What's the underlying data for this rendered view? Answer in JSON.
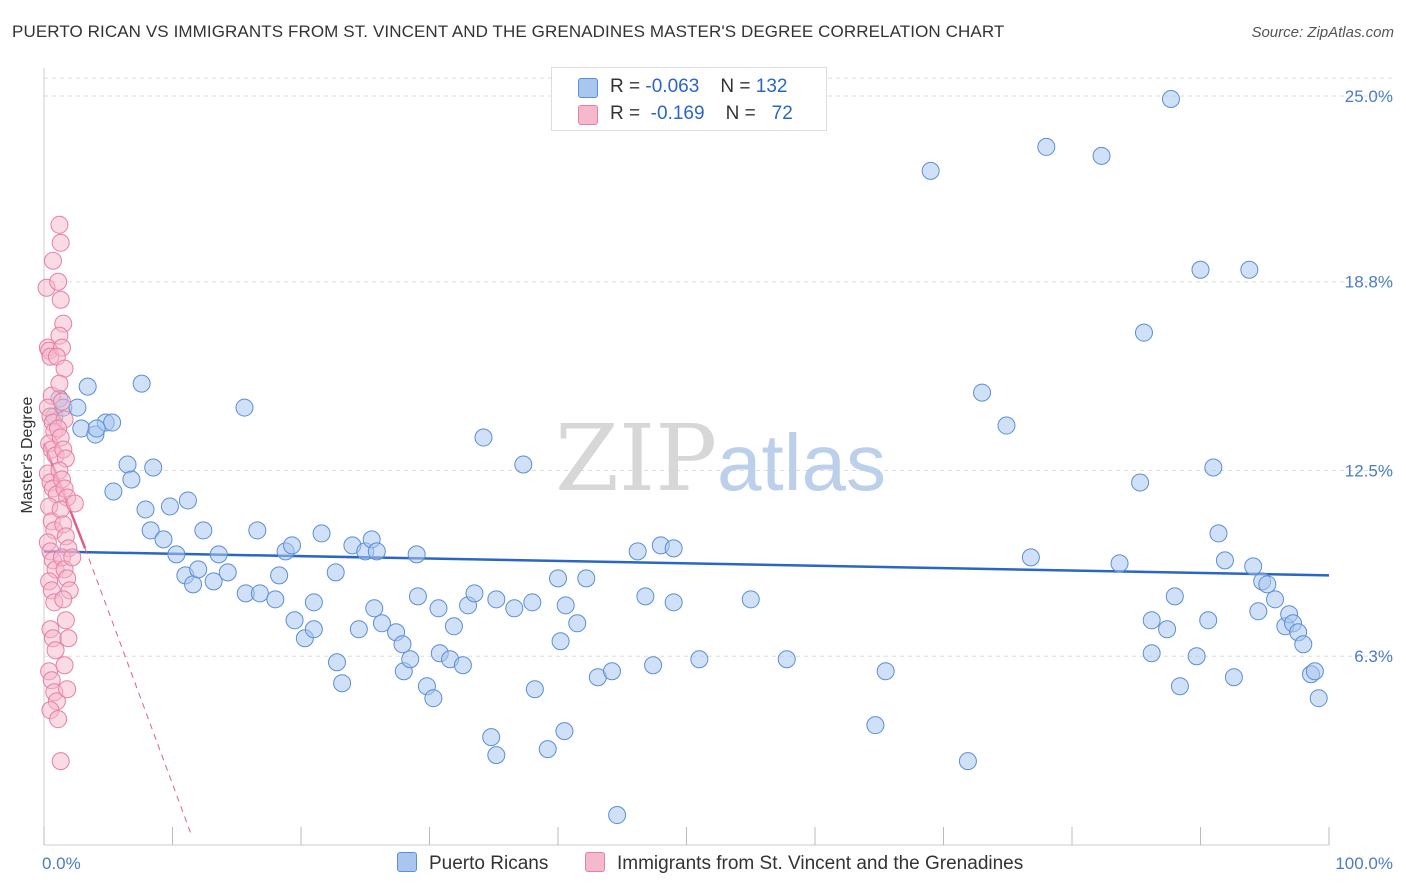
{
  "title": "PUERTO RICAN VS IMMIGRANTS FROM ST. VINCENT AND THE GRENADINES MASTER'S DEGREE CORRELATION CHART",
  "source": "Source: ZipAtlas.com",
  "watermark": {
    "part1": "ZIP",
    "part2": "atlas"
  },
  "legend_top": {
    "row1": {
      "r_label": "R =",
      "r_value": "-0.063",
      "n_label": "N =",
      "n_value": "132"
    },
    "row2": {
      "r_label": "R =",
      "r_value": "-0.169",
      "n_label": "N =",
      "n_value": "72"
    }
  },
  "legend_bottom": {
    "series1": "Puerto Ricans",
    "series2": "Immigrants from St. Vincent and the Grenadines"
  },
  "colors": {
    "blue_fill": "#a9c6ef",
    "blue_stroke": "#5b8fd6",
    "blue_line": "#2a66c8",
    "pink_fill": "#f6b8cc",
    "pink_stroke": "#e77fa1",
    "pink_line": "#e0608a",
    "grid": "#dddddd",
    "tick_text": "#4a7cc9"
  },
  "chart_data": {
    "type": "scatter",
    "title": "PUERTO RICAN VS IMMIGRANTS FROM ST. VINCENT AND THE GRENADINES MASTER'S DEGREE CORRELATION CHART",
    "xlabel": "",
    "ylabel": "Master's Degree",
    "xlim": [
      0,
      100
    ],
    "ylim": [
      0,
      25.6
    ],
    "x_tick_labels": [
      "0.0%",
      "100.0%"
    ],
    "y_ticks": [
      6.3,
      12.5,
      18.8,
      25.0
    ],
    "y_tick_labels": [
      "6.3%",
      "12.5%",
      "18.8%",
      "25.0%"
    ],
    "grid": true,
    "series": [
      {
        "name": "Puerto Ricans",
        "R": -0.063,
        "N": 132,
        "trend": {
          "x": [
            0,
            100
          ],
          "y": [
            9.8,
            9.0
          ]
        },
        "points": [
          [
            0.8,
            14.3
          ],
          [
            1.2,
            14.9
          ],
          [
            1.5,
            14.6
          ],
          [
            2.6,
            14.6
          ],
          [
            3.4,
            15.3
          ],
          [
            2.9,
            13.9
          ],
          [
            4.0,
            13.7
          ],
          [
            4.8,
            14.1
          ],
          [
            7.6,
            15.4
          ],
          [
            5.3,
            14.1
          ],
          [
            4.1,
            13.9
          ],
          [
            6.5,
            12.7
          ],
          [
            5.4,
            11.8
          ],
          [
            6.8,
            12.2
          ],
          [
            8.5,
            12.6
          ],
          [
            7.9,
            11.2
          ],
          [
            9.8,
            11.3
          ],
          [
            11.2,
            11.5
          ],
          [
            8.3,
            10.5
          ],
          [
            9.3,
            10.2
          ],
          [
            10.3,
            9.7
          ],
          [
            11.0,
            9.0
          ],
          [
            11.6,
            8.7
          ],
          [
            12.0,
            9.2
          ],
          [
            12.4,
            10.5
          ],
          [
            13.6,
            9.7
          ],
          [
            13.2,
            8.8
          ],
          [
            14.3,
            9.1
          ],
          [
            15.7,
            8.4
          ],
          [
            16.8,
            8.4
          ],
          [
            15.6,
            14.6
          ],
          [
            16.6,
            10.5
          ],
          [
            18.0,
            8.2
          ],
          [
            18.3,
            9.0
          ],
          [
            18.8,
            9.8
          ],
          [
            19.3,
            10.0
          ],
          [
            19.5,
            7.5
          ],
          [
            20.3,
            6.9
          ],
          [
            21.0,
            8.1
          ],
          [
            21.6,
            10.4
          ],
          [
            21.0,
            7.2
          ],
          [
            22.7,
            9.1
          ],
          [
            22.8,
            6.1
          ],
          [
            23.2,
            5.4
          ],
          [
            24.0,
            10.0
          ],
          [
            24.5,
            7.2
          ],
          [
            25.0,
            9.8
          ],
          [
            25.5,
            10.2
          ],
          [
            25.9,
            9.8
          ],
          [
            25.7,
            7.9
          ],
          [
            26.3,
            7.4
          ],
          [
            27.4,
            7.1
          ],
          [
            27.9,
            6.7
          ],
          [
            28.0,
            5.8
          ],
          [
            28.5,
            6.2
          ],
          [
            29.0,
            9.7
          ],
          [
            29.1,
            8.3
          ],
          [
            29.8,
            5.3
          ],
          [
            30.3,
            4.9
          ],
          [
            30.8,
            6.4
          ],
          [
            30.7,
            7.9
          ],
          [
            31.6,
            6.2
          ],
          [
            31.9,
            7.3
          ],
          [
            32.6,
            6.0
          ],
          [
            33.0,
            8.0
          ],
          [
            33.5,
            8.4
          ],
          [
            34.2,
            13.6
          ],
          [
            34.8,
            3.6
          ],
          [
            35.2,
            3.0
          ],
          [
            35.2,
            8.2
          ],
          [
            36.6,
            7.9
          ],
          [
            37.3,
            12.7
          ],
          [
            38.0,
            8.1
          ],
          [
            38.2,
            5.2
          ],
          [
            40.0,
            8.9
          ],
          [
            40.2,
            6.8
          ],
          [
            39.2,
            3.2
          ],
          [
            40.5,
            3.8
          ],
          [
            40.6,
            8.0
          ],
          [
            41.5,
            7.4
          ],
          [
            42.2,
            8.9
          ],
          [
            43.1,
            5.6
          ],
          [
            44.6,
            1.0
          ],
          [
            44.2,
            5.8
          ],
          [
            46.2,
            9.8
          ],
          [
            46.8,
            8.3
          ],
          [
            47.4,
            6.0
          ],
          [
            48.0,
            10.0
          ],
          [
            49.0,
            9.9
          ],
          [
            49.0,
            8.1
          ],
          [
            51.0,
            6.2
          ],
          [
            55.0,
            8.2
          ],
          [
            57.8,
            6.2
          ],
          [
            64.7,
            4.0
          ],
          [
            65.5,
            5.8
          ],
          [
            69.0,
            22.5
          ],
          [
            71.9,
            2.8
          ],
          [
            73.0,
            15.1
          ],
          [
            74.9,
            14.0
          ],
          [
            76.8,
            9.6
          ],
          [
            78.0,
            23.3
          ],
          [
            82.3,
            23.0
          ],
          [
            83.7,
            9.4
          ],
          [
            85.3,
            12.1
          ],
          [
            85.6,
            17.1
          ],
          [
            86.2,
            7.5
          ],
          [
            86.2,
            6.4
          ],
          [
            87.4,
            7.2
          ],
          [
            88.0,
            8.3
          ],
          [
            88.4,
            5.3
          ],
          [
            89.7,
            6.3
          ],
          [
            90.0,
            19.2
          ],
          [
            90.6,
            7.5
          ],
          [
            91.0,
            12.6
          ],
          [
            91.4,
            10.4
          ],
          [
            91.9,
            9.5
          ],
          [
            92.6,
            5.6
          ],
          [
            93.8,
            19.2
          ],
          [
            94.1,
            9.3
          ],
          [
            94.5,
            7.8
          ],
          [
            94.8,
            8.8
          ],
          [
            95.2,
            8.7
          ],
          [
            95.8,
            8.2
          ],
          [
            96.6,
            7.3
          ],
          [
            96.9,
            7.7
          ],
          [
            97.2,
            7.4
          ],
          [
            97.6,
            7.1
          ],
          [
            98.0,
            6.7
          ],
          [
            98.6,
            5.7
          ],
          [
            98.9,
            5.8
          ],
          [
            99.2,
            4.9
          ],
          [
            87.7,
            24.9
          ]
        ]
      },
      {
        "name": "Immigrants from St. Vincent and the Grenadines",
        "R": -0.169,
        "N": 72,
        "trend": {
          "x": [
            0,
            3.2
          ],
          "y": [
            13.4,
            9.9
          ]
        },
        "trend_extended": {
          "x": [
            3.2,
            11.5
          ],
          "y": [
            9.9,
            0.3
          ]
        },
        "points": [
          [
            0.2,
            18.6
          ],
          [
            0.3,
            16.6
          ],
          [
            0.4,
            16.5
          ],
          [
            0.5,
            16.3
          ],
          [
            0.6,
            15.0
          ],
          [
            0.3,
            14.6
          ],
          [
            0.5,
            14.3
          ],
          [
            0.7,
            14.1
          ],
          [
            0.8,
            13.8
          ],
          [
            0.4,
            13.4
          ],
          [
            0.6,
            13.2
          ],
          [
            0.9,
            13.0
          ],
          [
            0.3,
            12.4
          ],
          [
            0.5,
            12.1
          ],
          [
            0.7,
            11.9
          ],
          [
            1.0,
            11.7
          ],
          [
            0.4,
            11.3
          ],
          [
            0.6,
            10.8
          ],
          [
            0.8,
            10.5
          ],
          [
            0.3,
            10.1
          ],
          [
            0.5,
            9.8
          ],
          [
            0.7,
            9.5
          ],
          [
            0.9,
            9.2
          ],
          [
            0.4,
            8.8
          ],
          [
            0.6,
            8.5
          ],
          [
            0.8,
            8.1
          ],
          [
            0.5,
            7.2
          ],
          [
            0.7,
            6.9
          ],
          [
            0.9,
            6.5
          ],
          [
            0.4,
            5.8
          ],
          [
            0.6,
            5.5
          ],
          [
            0.8,
            5.1
          ],
          [
            1.0,
            4.8
          ],
          [
            0.5,
            4.5
          ],
          [
            1.1,
            4.2
          ],
          [
            1.2,
            20.7
          ],
          [
            1.3,
            20.1
          ],
          [
            0.7,
            19.5
          ],
          [
            1.1,
            18.8
          ],
          [
            1.3,
            18.2
          ],
          [
            1.5,
            17.4
          ],
          [
            1.2,
            17.0
          ],
          [
            1.4,
            16.6
          ],
          [
            1.0,
            16.3
          ],
          [
            1.6,
            15.9
          ],
          [
            1.2,
            15.4
          ],
          [
            1.4,
            14.8
          ],
          [
            1.6,
            14.2
          ],
          [
            1.1,
            13.9
          ],
          [
            1.3,
            13.6
          ],
          [
            1.5,
            13.2
          ],
          [
            1.7,
            12.9
          ],
          [
            1.2,
            12.5
          ],
          [
            1.4,
            12.2
          ],
          [
            1.6,
            11.9
          ],
          [
            1.8,
            11.6
          ],
          [
            1.3,
            11.2
          ],
          [
            1.5,
            10.7
          ],
          [
            1.7,
            10.3
          ],
          [
            1.9,
            9.9
          ],
          [
            1.4,
            9.6
          ],
          [
            1.6,
            9.2
          ],
          [
            1.8,
            8.9
          ],
          [
            2.0,
            8.5
          ],
          [
            1.5,
            8.2
          ],
          [
            1.7,
            7.5
          ],
          [
            1.9,
            6.9
          ],
          [
            1.6,
            6.0
          ],
          [
            1.8,
            5.2
          ],
          [
            1.3,
            2.8
          ],
          [
            2.4,
            11.4
          ],
          [
            2.2,
            9.6
          ]
        ]
      }
    ]
  }
}
